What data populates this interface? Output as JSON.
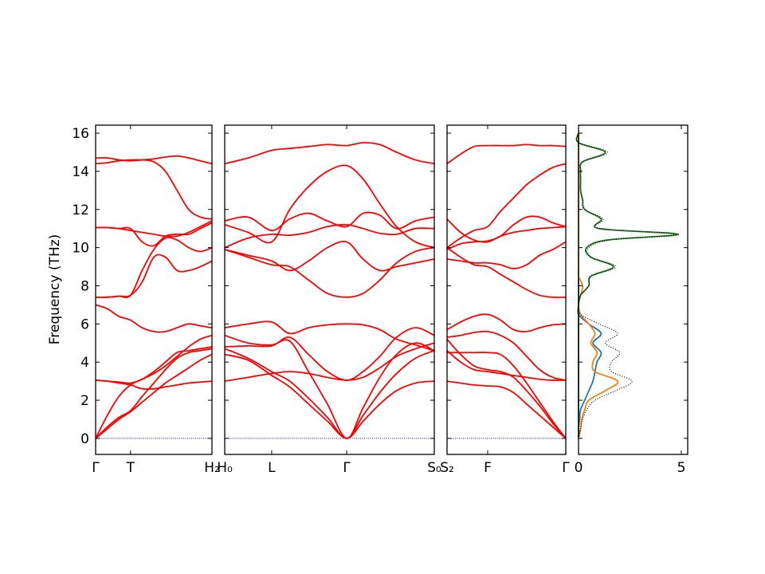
{
  "chart_data": [
    {
      "type": "line",
      "ylabel": "Frequency (THz)",
      "x": [
        0,
        0.1,
        0.2,
        0.3,
        0.4,
        0.5,
        0.6,
        0.7,
        0.8,
        0.9,
        1.0
      ],
      "xlim": [
        0,
        1
      ],
      "xticks": [
        {
          "value": 0,
          "label": "Γ"
        },
        {
          "value": 0.3,
          "label": "T"
        },
        {
          "value": 1,
          "label": "H₂"
        }
      ],
      "ylim": [
        -0.84,
        16.42
      ],
      "yticks": [
        0,
        2,
        4,
        6,
        8,
        10,
        12,
        14,
        16
      ],
      "series": [
        {
          "color": "#0000ff",
          "dash": "dotted",
          "values": [
            0,
            0,
            0,
            0,
            0,
            0,
            0,
            0,
            0,
            0,
            0
          ]
        },
        {
          "color": "#ff0000",
          "values": [
            0,
            0.5,
            1.0,
            1.4,
            1.9,
            2.4,
            2.9,
            3.3,
            3.7,
            4.1,
            4.4
          ]
        },
        {
          "color": "#ff0000",
          "values": [
            0,
            0.6,
            1.1,
            1.45,
            2.2,
            2.9,
            3.6,
            4.2,
            4.5,
            4.6,
            4.7
          ]
        },
        {
          "color": "#ff0000",
          "values": [
            0,
            1.2,
            2.2,
            2.8,
            3.1,
            3.4,
            3.8,
            4.3,
            4.8,
            5.2,
            5.4
          ]
        },
        {
          "color": "#ff0000",
          "values": [
            3.05,
            3.0,
            2.9,
            2.8,
            2.6,
            2.6,
            2.7,
            2.8,
            2.9,
            2.95,
            3.0
          ]
        },
        {
          "color": "#ff0000",
          "values": [
            3.05,
            3.0,
            2.95,
            2.9,
            3.1,
            3.5,
            4.0,
            4.5,
            4.6,
            4.7,
            4.8
          ]
        },
        {
          "color": "#ff0000",
          "values": [
            7.0,
            6.8,
            6.4,
            6.2,
            5.8,
            5.6,
            5.6,
            5.8,
            6.0,
            5.9,
            5.8
          ]
        },
        {
          "color": "#ff0000",
          "values": [
            7.4,
            7.4,
            7.45,
            7.5,
            8.8,
            9.9,
            10.5,
            10.4,
            10.0,
            9.8,
            10.0
          ]
        },
        {
          "color": "#ff0000",
          "values": [
            7.4,
            7.4,
            7.45,
            7.5,
            8.2,
            9.5,
            9.5,
            8.8,
            8.8,
            9.0,
            9.3
          ]
        },
        {
          "color": "#ff0000",
          "values": [
            11.05,
            11.05,
            11.0,
            11.0,
            10.3,
            10.1,
            10.6,
            10.7,
            10.7,
            11.0,
            11.3
          ]
        },
        {
          "color": "#ff0000",
          "values": [
            11.05,
            11.05,
            11.0,
            10.9,
            10.8,
            10.7,
            10.6,
            10.6,
            10.8,
            11.1,
            11.4
          ]
        },
        {
          "color": "#ff0000",
          "values": [
            14.4,
            14.45,
            14.55,
            14.6,
            14.6,
            14.5,
            14.0,
            13.0,
            12.0,
            11.6,
            11.5
          ]
        },
        {
          "color": "#ff0000",
          "values": [
            14.7,
            14.7,
            14.6,
            14.55,
            14.6,
            14.65,
            14.75,
            14.8,
            14.7,
            14.55,
            14.4
          ]
        }
      ]
    },
    {
      "type": "line",
      "x": [
        0,
        0.112,
        0.224,
        0.31,
        0.4,
        0.49,
        0.582,
        0.66,
        0.74,
        0.82,
        0.91,
        1.0
      ],
      "xlim": [
        0,
        1
      ],
      "xticks": [
        {
          "value": 0,
          "label": "H₀"
        },
        {
          "value": 0.224,
          "label": "L"
        },
        {
          "value": 0.582,
          "label": "Γ"
        },
        {
          "value": 1,
          "label": "S₀"
        }
      ],
      "ylim": [
        -0.84,
        16.42
      ],
      "series": [
        {
          "color": "#0000ff",
          "dash": "dotted",
          "values": [
            0,
            0,
            0,
            0,
            0,
            0,
            0,
            0,
            0,
            0,
            0,
            0
          ]
        },
        {
          "color": "#ff0000",
          "values": [
            4.4,
            4.1,
            3.3,
            2.7,
            1.8,
            0.9,
            0,
            0.9,
            1.8,
            2.5,
            2.9,
            3.0
          ]
        },
        {
          "color": "#ff0000",
          "values": [
            4.7,
            4.2,
            3.5,
            3.0,
            2.1,
            1.1,
            0,
            1.2,
            2.4,
            3.4,
            4.2,
            4.6
          ]
        },
        {
          "color": "#ff0000",
          "values": [
            5.4,
            5.0,
            4.9,
            5.1,
            3.5,
            1.8,
            0,
            1.6,
            3.2,
            4.4,
            5.0,
            4.6
          ]
        },
        {
          "color": "#ff0000",
          "values": [
            3.0,
            3.2,
            3.4,
            3.5,
            3.4,
            3.2,
            3.05,
            3.2,
            3.7,
            4.3,
            4.7,
            5.0
          ]
        },
        {
          "color": "#ff0000",
          "values": [
            4.8,
            4.85,
            4.85,
            5.3,
            4.4,
            3.5,
            3.05,
            3.5,
            4.3,
            5.3,
            5.8,
            5.4
          ]
        },
        {
          "color": "#ff0000",
          "values": [
            5.8,
            6.0,
            6.1,
            5.5,
            5.8,
            5.95,
            6.0,
            5.95,
            5.7,
            5.2,
            4.9,
            4.6
          ]
        },
        {
          "color": "#ff0000",
          "values": [
            9.9,
            9.6,
            9.3,
            8.8,
            9.3,
            10.0,
            10.3,
            9.4,
            8.8,
            9.0,
            9.2,
            9.4
          ]
        },
        {
          "color": "#ff0000",
          "values": [
            9.9,
            9.5,
            9.1,
            9.0,
            8.3,
            7.6,
            7.4,
            7.6,
            8.3,
            9.2,
            9.8,
            10.0
          ]
        },
        {
          "color": "#ff0000",
          "values": [
            10.0,
            10.5,
            10.7,
            10.65,
            10.8,
            11.1,
            11.2,
            11.0,
            10.75,
            10.7,
            11.0,
            11.0
          ]
        },
        {
          "color": "#ff0000",
          "values": [
            11.4,
            11.6,
            10.9,
            11.5,
            11.8,
            11.4,
            11.1,
            11.8,
            11.7,
            11.0,
            11.4,
            11.6
          ]
        },
        {
          "color": "#ff0000",
          "values": [
            11.2,
            10.8,
            10.3,
            12.0,
            13.2,
            14.0,
            14.3,
            13.6,
            12.3,
            11.1,
            10.3,
            10.0
          ]
        },
        {
          "color": "#ff0000",
          "values": [
            14.4,
            14.7,
            15.1,
            15.2,
            15.3,
            15.4,
            15.35,
            15.5,
            15.4,
            15.0,
            14.6,
            14.4
          ]
        }
      ]
    },
    {
      "type": "line",
      "x": [
        0,
        0.114,
        0.228,
        0.342,
        0.45,
        0.56,
        0.67,
        0.78,
        0.89,
        1.0
      ],
      "xlim": [
        0,
        1
      ],
      "xticks": [
        {
          "value": 0,
          "label": "S₂"
        },
        {
          "value": 0.342,
          "label": "F"
        },
        {
          "value": 1,
          "label": "Γ"
        }
      ],
      "ylim": [
        -0.84,
        16.42
      ],
      "series": [
        {
          "color": "#0000ff",
          "dash": "dotted",
          "values": [
            0,
            0,
            0,
            0,
            0,
            0,
            0,
            0,
            0,
            0
          ]
        },
        {
          "color": "#ff0000",
          "values": [
            3.0,
            2.9,
            2.8,
            2.75,
            2.7,
            2.4,
            1.8,
            1.2,
            0.6,
            0
          ]
        },
        {
          "color": "#ff0000",
          "values": [
            4.5,
            4.5,
            4.5,
            4.5,
            4.4,
            3.8,
            2.9,
            1.9,
            0.9,
            0
          ]
        },
        {
          "color": "#ff0000",
          "values": [
            5.2,
            4.4,
            3.8,
            3.6,
            3.5,
            3.2,
            2.5,
            1.7,
            0.8,
            0
          ]
        },
        {
          "color": "#ff0000",
          "values": [
            4.6,
            4.0,
            3.6,
            3.5,
            3.4,
            3.3,
            3.2,
            3.1,
            3.05,
            3.05
          ]
        },
        {
          "color": "#ff0000",
          "values": [
            5.3,
            5.4,
            5.55,
            5.6,
            5.4,
            5.0,
            4.3,
            3.6,
            3.2,
            3.05
          ]
        },
        {
          "color": "#ff0000",
          "values": [
            5.7,
            6.1,
            6.4,
            6.5,
            6.2,
            5.7,
            5.6,
            5.8,
            5.95,
            6.0
          ]
        },
        {
          "color": "#ff0000",
          "values": [
            9.4,
            9.3,
            9.2,
            9.2,
            9.1,
            8.9,
            9.1,
            9.6,
            9.9,
            10.3
          ]
        },
        {
          "color": "#ff0000",
          "values": [
            10.0,
            9.5,
            9.1,
            9.0,
            8.6,
            8.2,
            7.8,
            7.5,
            7.4,
            7.4
          ]
        },
        {
          "color": "#ff0000",
          "values": [
            11.5,
            10.8,
            10.4,
            10.3,
            10.6,
            10.8,
            10.9,
            11.0,
            11.05,
            11.1
          ]
        },
        {
          "color": "#ff0000",
          "values": [
            9.9,
            10.2,
            10.3,
            10.35,
            10.6,
            11.2,
            11.6,
            11.6,
            11.3,
            11.1
          ]
        },
        {
          "color": "#ff0000",
          "values": [
            10.0,
            10.5,
            10.9,
            11.1,
            11.9,
            12.6,
            13.3,
            13.8,
            14.2,
            14.4
          ]
        },
        {
          "color": "#ff0000",
          "values": [
            14.4,
            14.9,
            15.3,
            15.35,
            15.35,
            15.35,
            15.4,
            15.35,
            15.35,
            15.3
          ]
        }
      ]
    },
    {
      "type": "dos",
      "y": [
        0,
        0.5,
        1,
        1.5,
        2,
        2.5,
        3,
        3.5,
        4,
        4.5,
        5,
        5.5,
        6,
        6.5,
        7,
        7.5,
        8,
        8.5,
        9,
        9.5,
        10,
        10.4,
        10.7,
        11,
        11.5,
        12,
        12.5,
        13,
        13.5,
        14,
        14.5,
        15,
        15.5,
        16
      ],
      "xlim": [
        0,
        5.31
      ],
      "xticks": [
        0,
        5
      ],
      "ylim": [
        -0.84,
        16.42
      ],
      "series": [
        {
          "color": "#1f77b4",
          "values": [
            0,
            0,
            0.05,
            0.1,
            0.3,
            0.5,
            0.7,
            0.8,
            0.9,
            1.1,
            0.7,
            1.1,
            0.5,
            0,
            0,
            0,
            0,
            0,
            0,
            0,
            0,
            0,
            0,
            0,
            0,
            0,
            0,
            0,
            0,
            0,
            0,
            0,
            0,
            0
          ]
        },
        {
          "color": "#ff7f0e",
          "values": [
            0,
            0.1,
            0.15,
            0.3,
            0.5,
            1.3,
            1.9,
            0.8,
            0.7,
            0.9,
            0.6,
            0.8,
            0.5,
            0.1,
            0,
            0.1,
            0.2,
            0,
            0,
            0,
            0,
            0,
            0,
            0,
            0,
            0,
            0,
            0,
            0,
            0,
            0,
            0,
            0,
            0
          ]
        },
        {
          "color": "#1a7a1a",
          "values": [
            0,
            0,
            0,
            0,
            0,
            0,
            0,
            0,
            0,
            0,
            0,
            0,
            0,
            0,
            0,
            0.1,
            0.5,
            0.6,
            1.7,
            0.6,
            0.4,
            1.4,
            4.8,
            1.0,
            1.1,
            0.3,
            0.2,
            0.1,
            0.1,
            0.1,
            0.2,
            1.3,
            0,
            0
          ]
        },
        {
          "color": "#000000",
          "dash": "dotted",
          "values": [
            0,
            0.1,
            0.2,
            0.4,
            0.8,
            1.8,
            2.6,
            1.6,
            1.6,
            2.0,
            1.3,
            1.9,
            1.0,
            0.1,
            0,
            0.1,
            0.5,
            0.6,
            1.8,
            0.6,
            0.5,
            1.5,
            4.9,
            1.0,
            1.2,
            0.3,
            0.2,
            0.1,
            0.1,
            0.1,
            0.2,
            1.4,
            0,
            0
          ]
        }
      ]
    }
  ]
}
